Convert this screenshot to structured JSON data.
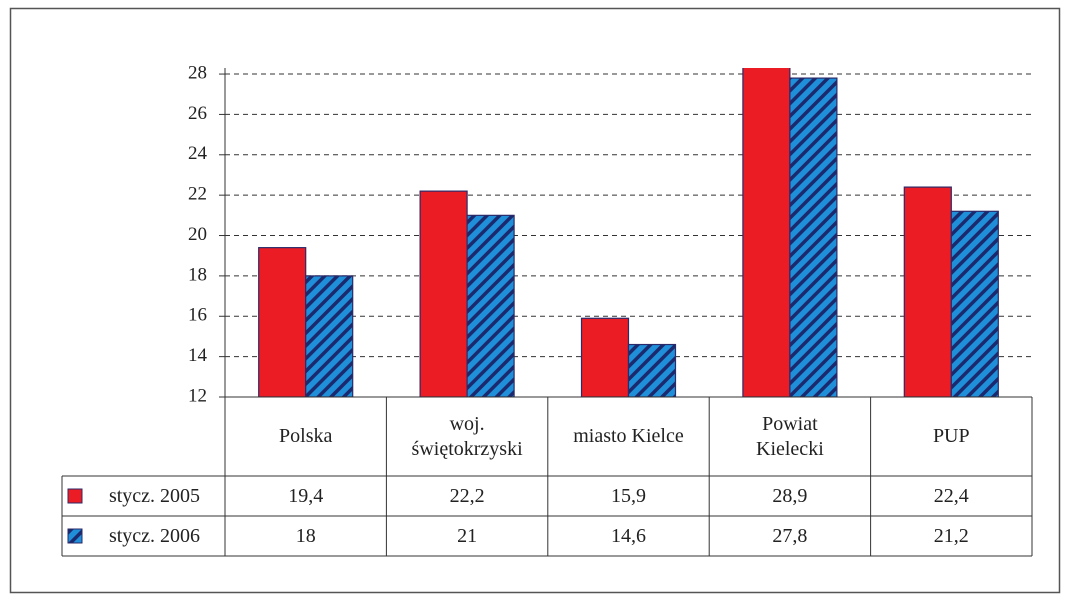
{
  "chart_data": {
    "type": "bar",
    "categories": [
      "Polska",
      "woj.\nświętokrzyski",
      "miasto Kielce",
      "Powiat\nKielecki",
      "PUP"
    ],
    "series": [
      {
        "name": "stycz. 2005",
        "color": "#ec1c24",
        "values": [
          19.4,
          22.2,
          15.9,
          28.9,
          22.4
        ],
        "value_labels": [
          "19,4",
          "22,2",
          "15,9",
          "28,9",
          "22,4"
        ]
      },
      {
        "name": "stycz. 2006",
        "color": "#1e8fd8",
        "pattern": "hatch",
        "values": [
          18,
          21,
          14.6,
          27.8,
          21.2
        ],
        "value_labels": [
          "18",
          "21",
          "14,6",
          "27,8",
          "21,2"
        ]
      }
    ],
    "ylim": [
      12,
      28.3
    ],
    "yticks": [
      12,
      14,
      16,
      18,
      20,
      22,
      24,
      26,
      28
    ],
    "grid": true,
    "data_table": true
  }
}
